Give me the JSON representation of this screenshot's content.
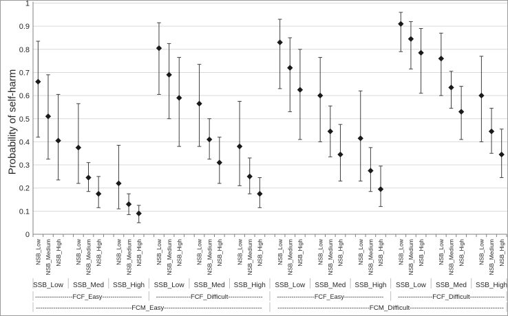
{
  "chart_data": {
    "type": "scatter",
    "marker": "diamond",
    "title": "",
    "xlabel": "",
    "ylabel": "Probability of self-harm",
    "ylim": [
      0,
      1
    ],
    "yticks": [
      0,
      0.1,
      0.2,
      0.3,
      0.4,
      0.5,
      0.6,
      0.7,
      0.8,
      0.9,
      1
    ],
    "ytick_labels": [
      "0",
      "0.1",
      "0.2",
      "0.3",
      "0.4",
      "0.5",
      "0.6",
      "0.7",
      "0.8",
      "0.9",
      "1"
    ],
    "grid": "horizontal",
    "legend": "none",
    "error_bars": "vertical, asymmetric, with caps",
    "colors": {
      "grid": "#d9d9d9",
      "axis": "#808080",
      "separator": "#bfbfbf",
      "marker": "#1a1a1a",
      "errorbar": "#3f3f3f",
      "text": "#262626"
    },
    "x_hierarchy": {
      "level1_nsb": [
        "NSB_Low",
        "NSB_Medium",
        "NSB_High"
      ],
      "level2_ssb": [
        "SSB_Low",
        "SSB_Med",
        "SSB_High"
      ],
      "level3_fcf": [
        "FCF_Easy",
        "FCF_Difficult",
        "FCF_Easy",
        "FCF_Difficult"
      ],
      "level4_fcm": [
        "FCM_Easy",
        "FCM_Difficult"
      ]
    },
    "fcf_row": [
      "------------------FCF_Easy-------------------",
      "----------------FCF_Difficult----------------",
      "------------------FCF_Easy-------------------",
      "----------------FCF_Difficult----------------"
    ],
    "fcm_row": [
      "--------------------------------------------FCM_Easy---------------------------------------------",
      "-----------------------------------------FCM_Difficult------------------------------------------"
    ],
    "points": [
      {
        "fcm": "FCM_Easy",
        "fcf": "FCF_Easy",
        "ssb": "SSB_Low",
        "nsb": "NSB_Low",
        "p": 0.66,
        "lo": 0.42,
        "hi": 0.835
      },
      {
        "fcm": "FCM_Easy",
        "fcf": "FCF_Easy",
        "ssb": "SSB_Low",
        "nsb": "NSB_Medium",
        "p": 0.51,
        "lo": 0.325,
        "hi": 0.69
      },
      {
        "fcm": "FCM_Easy",
        "fcf": "FCF_Easy",
        "ssb": "SSB_Low",
        "nsb": "NSB_High",
        "p": 0.405,
        "lo": 0.235,
        "hi": 0.605
      },
      {
        "fcm": "FCM_Easy",
        "fcf": "FCF_Easy",
        "ssb": "SSB_Med",
        "nsb": "NSB_Low",
        "p": 0.375,
        "lo": 0.22,
        "hi": 0.565
      },
      {
        "fcm": "FCM_Easy",
        "fcf": "FCF_Easy",
        "ssb": "SSB_Med",
        "nsb": "NSB_Medium",
        "p": 0.245,
        "lo": 0.185,
        "hi": 0.31
      },
      {
        "fcm": "FCM_Easy",
        "fcf": "FCF_Easy",
        "ssb": "SSB_Med",
        "nsb": "NSB_High",
        "p": 0.175,
        "lo": 0.115,
        "hi": 0.25
      },
      {
        "fcm": "FCM_Easy",
        "fcf": "FCF_Easy",
        "ssb": "SSB_High",
        "nsb": "NSB_Low",
        "p": 0.22,
        "lo": 0.11,
        "hi": 0.385
      },
      {
        "fcm": "FCM_Easy",
        "fcf": "FCF_Easy",
        "ssb": "SSB_High",
        "nsb": "NSB_Medium",
        "p": 0.13,
        "lo": 0.085,
        "hi": 0.175
      },
      {
        "fcm": "FCM_Easy",
        "fcf": "FCF_Easy",
        "ssb": "SSB_High",
        "nsb": "NSB_High",
        "p": 0.09,
        "lo": 0.05,
        "hi": 0.125
      },
      {
        "fcm": "FCM_Easy",
        "fcf": "FCF_Difficult",
        "ssb": "SSB_Low",
        "nsb": "NSB_Low",
        "p": 0.805,
        "lo": 0.605,
        "hi": 0.915
      },
      {
        "fcm": "FCM_Easy",
        "fcf": "FCF_Difficult",
        "ssb": "SSB_Low",
        "nsb": "NSB_Medium",
        "p": 0.69,
        "lo": 0.5,
        "hi": 0.825
      },
      {
        "fcm": "FCM_Easy",
        "fcf": "FCF_Difficult",
        "ssb": "SSB_Low",
        "nsb": "NSB_High",
        "p": 0.59,
        "lo": 0.38,
        "hi": 0.765
      },
      {
        "fcm": "FCM_Easy",
        "fcf": "FCF_Difficult",
        "ssb": "SSB_Med",
        "nsb": "NSB_Low",
        "p": 0.565,
        "lo": 0.38,
        "hi": 0.735
      },
      {
        "fcm": "FCM_Easy",
        "fcf": "FCF_Difficult",
        "ssb": "SSB_Med",
        "nsb": "NSB_Medium",
        "p": 0.41,
        "lo": 0.325,
        "hi": 0.5
      },
      {
        "fcm": "FCM_Easy",
        "fcf": "FCF_Difficult",
        "ssb": "SSB_Med",
        "nsb": "NSB_High",
        "p": 0.31,
        "lo": 0.22,
        "hi": 0.42
      },
      {
        "fcm": "FCM_Easy",
        "fcf": "FCF_Difficult",
        "ssb": "SSB_High",
        "nsb": "NSB_Low",
        "p": 0.38,
        "lo": 0.21,
        "hi": 0.575
      },
      {
        "fcm": "FCM_Easy",
        "fcf": "FCF_Difficult",
        "ssb": "SSB_High",
        "nsb": "NSB_Medium",
        "p": 0.25,
        "lo": 0.175,
        "hi": 0.33
      },
      {
        "fcm": "FCM_Easy",
        "fcf": "FCF_Difficult",
        "ssb": "SSB_High",
        "nsb": "NSB_High",
        "p": 0.175,
        "lo": 0.115,
        "hi": 0.245
      },
      {
        "fcm": "FCM_Difficult",
        "fcf": "FCF_Easy",
        "ssb": "SSB_Low",
        "nsb": "NSB_Low",
        "p": 0.83,
        "lo": 0.63,
        "hi": 0.93
      },
      {
        "fcm": "FCM_Difficult",
        "fcf": "FCF_Easy",
        "ssb": "SSB_Low",
        "nsb": "NSB_Medium",
        "p": 0.72,
        "lo": 0.53,
        "hi": 0.85
      },
      {
        "fcm": "FCM_Difficult",
        "fcf": "FCF_Easy",
        "ssb": "SSB_Low",
        "nsb": "NSB_High",
        "p": 0.625,
        "lo": 0.41,
        "hi": 0.8
      },
      {
        "fcm": "FCM_Difficult",
        "fcf": "FCF_Easy",
        "ssb": "SSB_Med",
        "nsb": "NSB_Low",
        "p": 0.6,
        "lo": 0.4,
        "hi": 0.765
      },
      {
        "fcm": "FCM_Difficult",
        "fcf": "FCF_Easy",
        "ssb": "SSB_Med",
        "nsb": "NSB_Medium",
        "p": 0.445,
        "lo": 0.335,
        "hi": 0.555
      },
      {
        "fcm": "FCM_Difficult",
        "fcf": "FCF_Easy",
        "ssb": "SSB_Med",
        "nsb": "NSB_High",
        "p": 0.345,
        "lo": 0.23,
        "hi": 0.475
      },
      {
        "fcm": "FCM_Difficult",
        "fcf": "FCF_Easy",
        "ssb": "SSB_High",
        "nsb": "NSB_Low",
        "p": 0.415,
        "lo": 0.23,
        "hi": 0.62
      },
      {
        "fcm": "FCM_Difficult",
        "fcf": "FCF_Easy",
        "ssb": "SSB_High",
        "nsb": "NSB_Medium",
        "p": 0.275,
        "lo": 0.185,
        "hi": 0.375
      },
      {
        "fcm": "FCM_Difficult",
        "fcf": "FCF_Easy",
        "ssb": "SSB_High",
        "nsb": "NSB_High",
        "p": 0.195,
        "lo": 0.12,
        "hi": 0.295
      },
      {
        "fcm": "FCM_Difficult",
        "fcf": "FCF_Difficult",
        "ssb": "SSB_Low",
        "nsb": "NSB_Low",
        "p": 0.91,
        "lo": 0.79,
        "hi": 0.96
      },
      {
        "fcm": "FCM_Difficult",
        "fcf": "FCF_Difficult",
        "ssb": "SSB_Low",
        "nsb": "NSB_Medium",
        "p": 0.845,
        "lo": 0.715,
        "hi": 0.92
      },
      {
        "fcm": "FCM_Difficult",
        "fcf": "FCF_Difficult",
        "ssb": "SSB_Low",
        "nsb": "NSB_High",
        "p": 0.785,
        "lo": 0.61,
        "hi": 0.89
      },
      {
        "fcm": "FCM_Difficult",
        "fcf": "FCF_Difficult",
        "ssb": "SSB_Med",
        "nsb": "NSB_Low",
        "p": 0.76,
        "lo": 0.6,
        "hi": 0.87
      },
      {
        "fcm": "FCM_Difficult",
        "fcf": "FCF_Difficult",
        "ssb": "SSB_Med",
        "nsb": "NSB_Medium",
        "p": 0.635,
        "lo": 0.545,
        "hi": 0.705
      },
      {
        "fcm": "FCM_Difficult",
        "fcf": "FCF_Difficult",
        "ssb": "SSB_Med",
        "nsb": "NSB_High",
        "p": 0.53,
        "lo": 0.41,
        "hi": 0.64
      },
      {
        "fcm": "FCM_Difficult",
        "fcf": "FCF_Difficult",
        "ssb": "SSB_High",
        "nsb": "NSB_Low",
        "p": 0.6,
        "lo": 0.4,
        "hi": 0.77
      },
      {
        "fcm": "FCM_Difficult",
        "fcf": "FCF_Difficult",
        "ssb": "SSB_High",
        "nsb": "NSB_Medium",
        "p": 0.445,
        "lo": 0.35,
        "hi": 0.545
      },
      {
        "fcm": "FCM_Difficult",
        "fcf": "FCF_Difficult",
        "ssb": "SSB_High",
        "nsb": "NSB_High",
        "p": 0.345,
        "lo": 0.245,
        "hi": 0.455
      }
    ]
  }
}
